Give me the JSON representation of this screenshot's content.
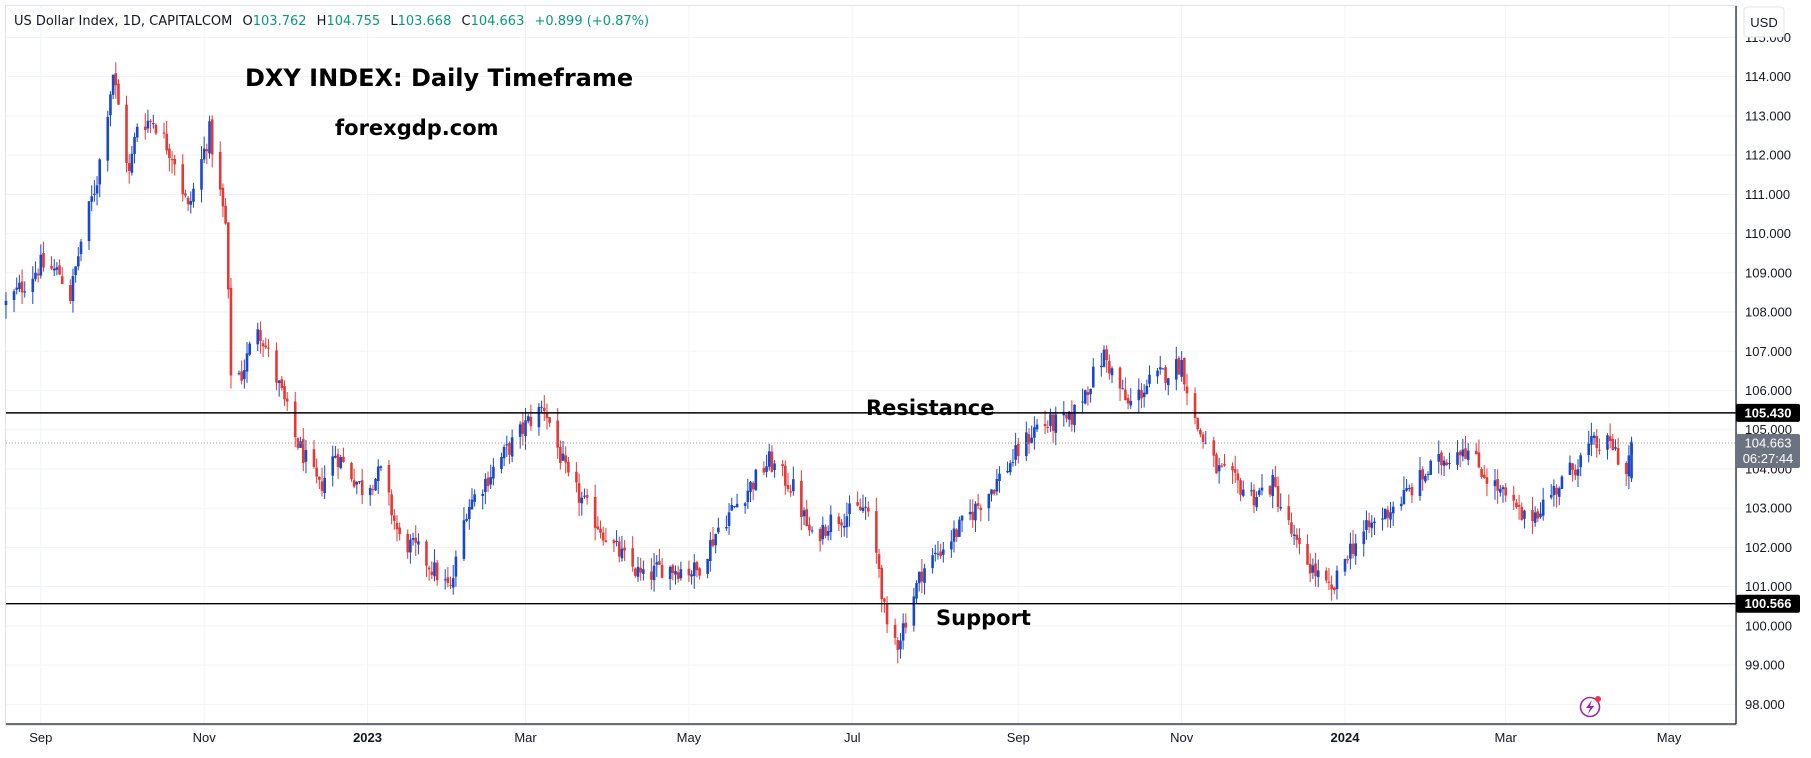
{
  "header": {
    "symbol": "US Dollar Index, 1D, CAPITALCOM",
    "o_label": "O",
    "o_value": "103.762",
    "h_label": "H",
    "h_value": "104.755",
    "l_label": "L",
    "l_value": "103.668",
    "c_label": "C",
    "c_value": "104.663",
    "change": "+0.899 (+0.87%)"
  },
  "annotations": {
    "title": "DXY INDEX: Daily Timeframe",
    "site": "forexgdp.com",
    "resistance_label": "Resistance",
    "support_label": "Support"
  },
  "currency": "USD",
  "tags": {
    "resistance": "105.430",
    "support": "100.566",
    "last_price": "104.663",
    "countdown": "06:27:44"
  },
  "colors": {
    "up": "#1848cc",
    "down": "#e53935",
    "level_line": "#000000",
    "last_price_tag": "#6b7280",
    "countdown_tag": "#9aa0a6"
  },
  "chart_data": {
    "type": "candlestick",
    "title": "US Dollar Index, 1D, CAPITALCOM",
    "ylabel": "USD",
    "ylim": [
      97.5,
      115.8
    ],
    "y_ticks": [
      "98.000",
      "99.000",
      "100.000",
      "101.000",
      "102.000",
      "103.000",
      "104.000",
      "105.000",
      "106.000",
      "107.000",
      "108.000",
      "109.000",
      "110.000",
      "111.000",
      "112.000",
      "113.000",
      "114.000",
      "115.000"
    ],
    "x_ticks": [
      {
        "label": "Sep",
        "date": "2022-09-01",
        "bold": false
      },
      {
        "label": "Nov",
        "date": "2022-11-01",
        "bold": false
      },
      {
        "label": "2023",
        "date": "2023-01-01",
        "bold": true
      },
      {
        "label": "Mar",
        "date": "2023-03-01",
        "bold": false
      },
      {
        "label": "May",
        "date": "2023-05-01",
        "bold": false
      },
      {
        "label": "Jul",
        "date": "2023-07-01",
        "bold": false
      },
      {
        "label": "Sep",
        "date": "2023-09-01",
        "bold": false
      },
      {
        "label": "Nov",
        "date": "2023-11-01",
        "bold": false
      },
      {
        "label": "2024",
        "date": "2024-01-01",
        "bold": true
      },
      {
        "label": "Mar",
        "date": "2024-03-01",
        "bold": false
      },
      {
        "label": "May",
        "date": "2024-05-01",
        "bold": false
      }
    ],
    "x_range": [
      "2022-08-19",
      "2024-05-26"
    ],
    "levels": {
      "resistance": 105.43,
      "support": 100.566,
      "last": 104.663
    },
    "close_path": [
      [
        "2022-08-19",
        108.2
      ],
      [
        "2022-09-01",
        109.2
      ],
      [
        "2022-09-08",
        109.0
      ],
      [
        "2022-09-12",
        108.4
      ],
      [
        "2022-09-16",
        109.8
      ],
      [
        "2022-09-22",
        111.4
      ],
      [
        "2022-09-28",
        114.1
      ],
      [
        "2022-10-04",
        111.5
      ],
      [
        "2022-10-07",
        112.8
      ],
      [
        "2022-10-13",
        112.9
      ],
      [
        "2022-10-21",
        111.9
      ],
      [
        "2022-10-26",
        110.6
      ],
      [
        "2022-11-03",
        112.6
      ],
      [
        "2022-11-09",
        110.2
      ],
      [
        "2022-11-11",
        106.5
      ],
      [
        "2022-11-15",
        106.4
      ],
      [
        "2022-11-21",
        107.7
      ],
      [
        "2022-11-30",
        105.9
      ],
      [
        "2022-12-05",
        104.8
      ],
      [
        "2022-12-14",
        103.5
      ],
      [
        "2022-12-20",
        104.4
      ],
      [
        "2022-12-30",
        103.5
      ],
      [
        "2023-01-06",
        103.9
      ],
      [
        "2023-01-13",
        102.2
      ],
      [
        "2023-01-20",
        101.9
      ],
      [
        "2023-02-01",
        100.9
      ],
      [
        "2023-02-07",
        103.0
      ],
      [
        "2023-02-17",
        104.0
      ],
      [
        "2023-03-02",
        105.2
      ],
      [
        "2023-03-08",
        105.6
      ],
      [
        "2023-03-17",
        103.7
      ],
      [
        "2023-03-24",
        103.0
      ],
      [
        "2023-04-03",
        102.0
      ],
      [
        "2023-04-14",
        101.2
      ],
      [
        "2023-04-21",
        101.5
      ],
      [
        "2023-05-04",
        101.4
      ],
      [
        "2023-05-12",
        102.5
      ],
      [
        "2023-05-31",
        104.2
      ],
      [
        "2023-06-09",
        103.5
      ],
      [
        "2023-06-16",
        102.2
      ],
      [
        "2023-06-23",
        102.7
      ],
      [
        "2023-07-06",
        103.0
      ],
      [
        "2023-07-11",
        101.5
      ],
      [
        "2023-07-14",
        99.8
      ],
      [
        "2023-07-18",
        99.6
      ],
      [
        "2023-07-27",
        101.4
      ],
      [
        "2023-08-09",
        102.4
      ],
      [
        "2023-08-23",
        103.6
      ],
      [
        "2023-09-08",
        105.1
      ],
      [
        "2023-09-20",
        105.2
      ],
      [
        "2023-10-03",
        106.9
      ],
      [
        "2023-10-12",
        105.6
      ],
      [
        "2023-10-20",
        106.2
      ],
      [
        "2023-11-01",
        106.7
      ],
      [
        "2023-11-06",
        105.2
      ],
      [
        "2023-11-14",
        104.0
      ],
      [
        "2023-11-28",
        103.3
      ],
      [
        "2023-12-05",
        103.6
      ],
      [
        "2023-12-14",
        102.0
      ],
      [
        "2023-12-27",
        100.8
      ],
      [
        "2024-01-02",
        101.9
      ],
      [
        "2024-01-10",
        102.5
      ],
      [
        "2024-01-23",
        103.3
      ],
      [
        "2024-02-02",
        104.0
      ],
      [
        "2024-02-14",
        104.6
      ],
      [
        "2024-02-23",
        103.8
      ],
      [
        "2024-03-08",
        102.7
      ],
      [
        "2024-03-12",
        102.9
      ],
      [
        "2024-03-21",
        103.6
      ],
      [
        "2024-04-02",
        104.6
      ],
      [
        "2024-04-10",
        104.6
      ],
      [
        "2024-04-15",
        103.9
      ],
      [
        "2024-04-17",
        104.66
      ]
    ]
  }
}
